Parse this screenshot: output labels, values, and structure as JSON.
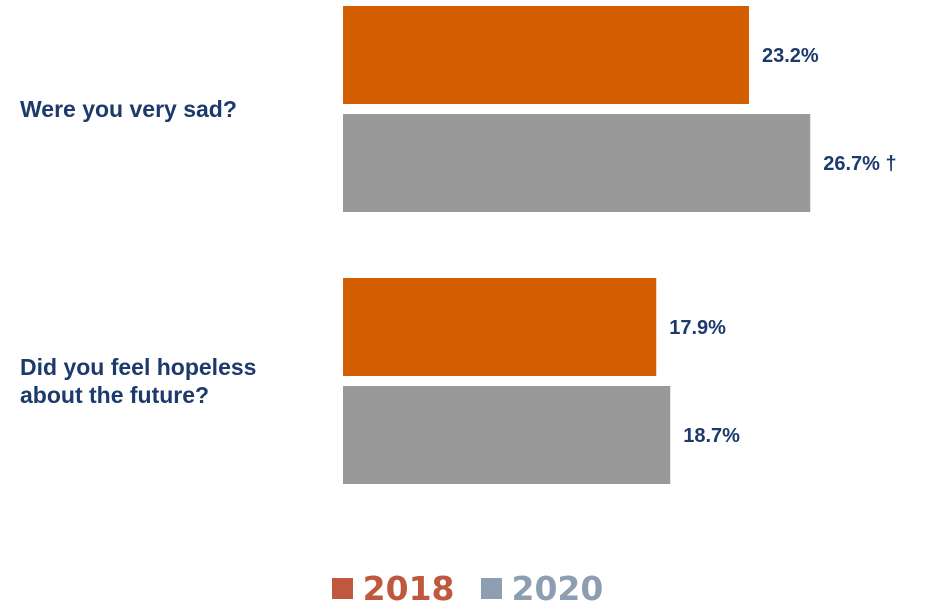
{
  "chart_data": {
    "type": "bar",
    "orientation": "horizontal",
    "categories": [
      [
        "Were you very sad?"
      ],
      [
        "Did you feel hopeless",
        "about the future?"
      ]
    ],
    "series": [
      {
        "name": "2018",
        "values": [
          23.2,
          17.9
        ],
        "labels": [
          "23.2%",
          "17.9%"
        ],
        "color": "#d45f00"
      },
      {
        "name": "2020",
        "values": [
          26.7,
          18.7
        ],
        "labels": [
          "26.7% †",
          "18.7%"
        ],
        "color": "#999999"
      }
    ],
    "legend_colors": [
      "#c0583f",
      "#8c9eb0"
    ],
    "title": "",
    "xlabel": "",
    "ylabel": "",
    "grid": false,
    "legend": "bottom-center"
  }
}
